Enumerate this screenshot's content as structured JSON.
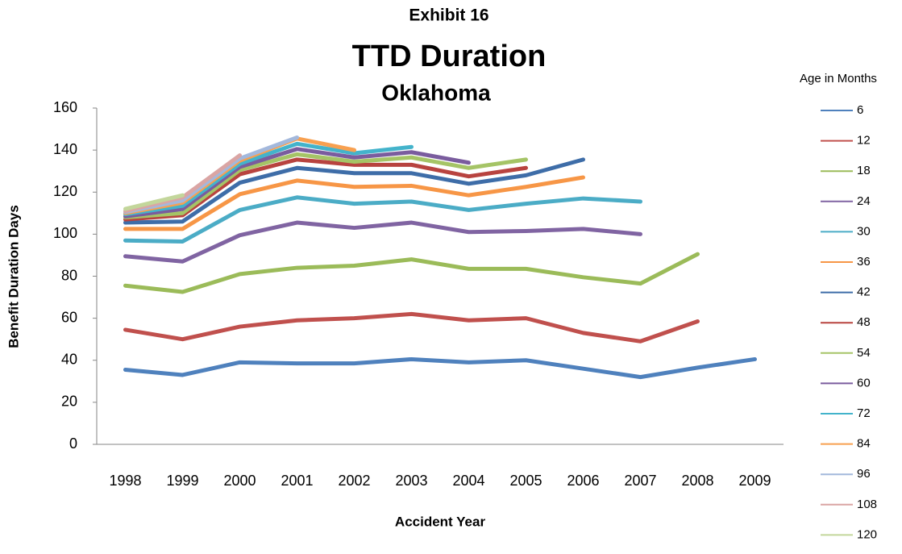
{
  "chart_data": {
    "type": "line",
    "title": "Exhibit 16",
    "subtitle": "TTD Duration",
    "subtitle2": "Oklahoma",
    "x_label": "Accident Year",
    "y_label": "Benefit Duration Days",
    "legend_title": "Age in Months",
    "legend": "right",
    "grid": false,
    "categories": [
      "1998",
      "1999",
      "2000",
      "2001",
      "2002",
      "2003",
      "2004",
      "2005",
      "2006",
      "2007",
      "2008",
      "2009"
    ],
    "ylim": [
      0,
      160
    ],
    "yticks": [
      0,
      20,
      40,
      60,
      80,
      100,
      120,
      140,
      160
    ],
    "series": [
      {
        "name": "6",
        "color": "#4F81BD",
        "values": [
          35.5,
          33,
          39,
          38.5,
          38.5,
          40.5,
          39,
          40,
          36,
          32,
          36.5,
          40.5
        ]
      },
      {
        "name": "12",
        "color": "#C0504D",
        "values": [
          54.5,
          50,
          56,
          59,
          60,
          62,
          59,
          60,
          53,
          49,
          58.5,
          null
        ]
      },
      {
        "name": "18",
        "color": "#9BBB59",
        "values": [
          75.5,
          72.5,
          81,
          84,
          85,
          88,
          83.5,
          83.5,
          79.5,
          76.5,
          90.5,
          null
        ]
      },
      {
        "name": "24",
        "color": "#8064A2",
        "values": [
          89.5,
          87,
          99.5,
          105.5,
          103,
          105.5,
          101,
          101.5,
          102.5,
          100,
          null,
          null
        ]
      },
      {
        "name": "30",
        "color": "#4BACC6",
        "values": [
          97,
          96.5,
          111.5,
          117.5,
          114.5,
          115.5,
          111.5,
          114.5,
          117,
          115.5,
          null,
          null
        ]
      },
      {
        "name": "36",
        "color": "#F79646",
        "values": [
          102.5,
          102.5,
          119,
          125.5,
          122.5,
          123,
          118.5,
          122.5,
          127,
          null,
          null,
          null
        ]
      },
      {
        "name": "42",
        "color": "#3E6DA8",
        "values": [
          105.5,
          106,
          124.5,
          131.5,
          129,
          129,
          124,
          128,
          135.5,
          null,
          null,
          null
        ]
      },
      {
        "name": "48",
        "color": "#B8433F",
        "values": [
          107,
          109,
          128.5,
          135.5,
          133,
          133,
          127.5,
          131.5,
          null,
          null,
          null,
          null
        ]
      },
      {
        "name": "54",
        "color": "#A5C466",
        "values": [
          108,
          110,
          130.5,
          138,
          134.5,
          136.5,
          131.5,
          135.5,
          null,
          null,
          null,
          null
        ]
      },
      {
        "name": "60",
        "color": "#7A5C9E",
        "values": [
          108.5,
          112,
          132,
          140.5,
          136.5,
          139,
          134,
          null,
          null,
          null,
          null,
          null
        ]
      },
      {
        "name": "72",
        "color": "#43B3CB",
        "values": [
          109.5,
          113.5,
          133.5,
          143,
          138.5,
          141.5,
          null,
          null,
          null,
          null,
          null,
          null
        ]
      },
      {
        "name": "84",
        "color": "#F8A050",
        "values": [
          110,
          115,
          135,
          145.5,
          140,
          null,
          null,
          null,
          null,
          null,
          null,
          null
        ]
      },
      {
        "name": "96",
        "color": "#A3B8DC",
        "values": [
          110.5,
          116,
          136,
          146,
          null,
          null,
          null,
          null,
          null,
          null,
          null,
          null
        ]
      },
      {
        "name": "108",
        "color": "#DAA5A4",
        "values": [
          111,
          117.5,
          137.5,
          null,
          null,
          null,
          null,
          null,
          null,
          null,
          null,
          null
        ]
      },
      {
        "name": "120",
        "color": "#C3D69B",
        "values": [
          112,
          118.5,
          null,
          null,
          null,
          null,
          null,
          null,
          null,
          null,
          null,
          null
        ]
      }
    ]
  }
}
